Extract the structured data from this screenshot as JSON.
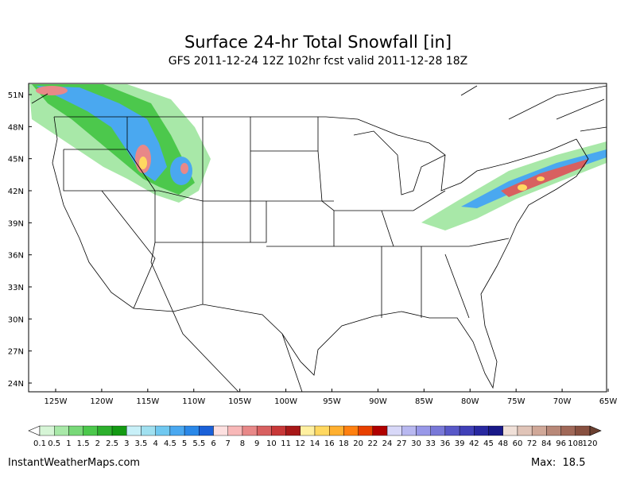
{
  "header": {
    "title": "Surface 24-hr Total Snowfall [in]",
    "subtitle": "GFS 2011-12-24 12Z 102hr fcst valid 2011-12-28 18Z"
  },
  "map": {
    "lat_labels": [
      "51N",
      "48N",
      "45N",
      "42N",
      "39N",
      "36N",
      "33N",
      "30N",
      "27N",
      "24N"
    ],
    "lon_labels": [
      "125W",
      "120W",
      "115W",
      "110W",
      "105W",
      "100W",
      "95W",
      "90W",
      "85W",
      "80W",
      "75W",
      "70W",
      "65W"
    ]
  },
  "legend": {
    "labels": [
      0.1,
      0.5,
      1,
      1.5,
      2,
      2.5,
      3,
      3.5,
      4,
      4.5,
      5,
      5.5,
      6,
      7,
      8,
      9,
      10,
      11,
      12,
      14,
      16,
      18,
      20,
      22,
      24,
      27,
      30,
      33,
      36,
      39,
      42,
      45,
      48,
      60,
      72,
      84,
      96,
      108,
      120
    ],
    "colors": [
      "#d6f5d6",
      "#a8e8a8",
      "#78d878",
      "#4cc84c",
      "#2db02d",
      "#139a13",
      "#c8f0f8",
      "#a0e0f0",
      "#70c8f0",
      "#4aa8f0",
      "#2a88e8",
      "#1a60d8",
      "#fde0e0",
      "#f8b8b8",
      "#e88888",
      "#d86060",
      "#c83838",
      "#a81818",
      "#fff0a0",
      "#ffd860",
      "#ffb030",
      "#ff8010",
      "#e84000",
      "#b00000",
      "#d8d8f8",
      "#b8b8f0",
      "#9898e8",
      "#7878d8",
      "#5858c8",
      "#4040b8",
      "#2828a0",
      "#181888",
      "#f0e0d8",
      "#e0c4b8",
      "#d0a898",
      "#b88878",
      "#a06858",
      "#885040"
    ]
  },
  "footer": {
    "source": "InstantWeatherMaps.com",
    "max": "Max:  18.5"
  }
}
